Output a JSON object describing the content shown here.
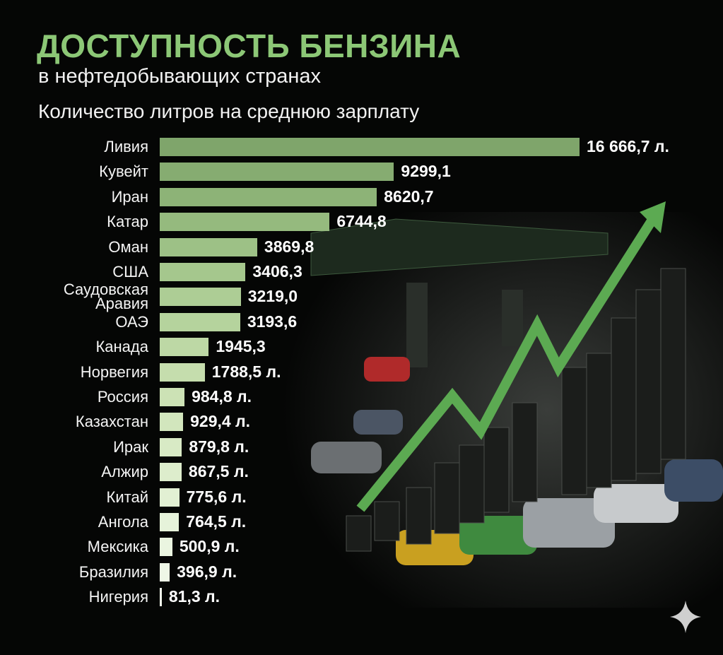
{
  "chart_data": {
    "type": "bar",
    "orientation": "horizontal",
    "title": "ДОСТУПНОСТЬ БЕНЗИНА",
    "subtitle": "в нефтедобывающих странах",
    "value_axis_label": "Количество литров на среднюю зарплату",
    "categories": [
      "Ливия",
      "Кувейт",
      "Иран",
      "Катар",
      "Оман",
      "США",
      "Саудовская Аравия",
      "ОАЭ",
      "Канада",
      "Норвегия",
      "Россия",
      "Казахстан",
      "Ирак",
      "Алжир",
      "Китай",
      "Ангола",
      "Мексика",
      "Бразилия",
      "Нигерия"
    ],
    "values": [
      16666.7,
      9299.1,
      8620.7,
      6744.8,
      3869.8,
      3406.3,
      3219.0,
      3193.6,
      1945.3,
      1788.5,
      984.8,
      929.4,
      879.8,
      867.5,
      775.6,
      764.5,
      500.9,
      396.9,
      81.3
    ],
    "value_labels": [
      "16 666,7 л.",
      "9299,1",
      "8620,7",
      "6744,8",
      "3869,8",
      "3406,3",
      "3219,0",
      "3193,6",
      "1945,3",
      "1788,5 л.",
      "984,8 л.",
      "929,4 л.",
      "879,8 л.",
      "867,5 л.",
      "775,6 л.",
      "764,5 л.",
      "500,9 л.",
      "396,9 л.",
      "81,3 л."
    ],
    "colors": [
      "#7fa56b",
      "#86ac71",
      "#8db377",
      "#95ba7e",
      "#9dc186",
      "#a5c78d",
      "#adcd95",
      "#b5d39d",
      "#bdd8a5",
      "#c5ddad",
      "#cce2b5",
      "#d2e6bd",
      "#d8eac5",
      "#ddedcc",
      "#e2f0d3",
      "#e6f3da",
      "#eaf5e0",
      "#eef7e6",
      "#f2f9ec"
    ]
  }
}
